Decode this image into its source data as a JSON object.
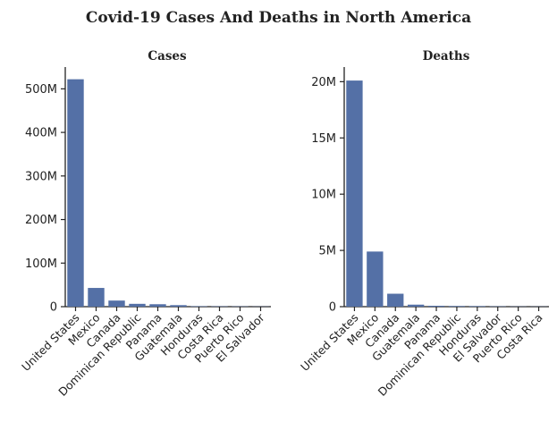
{
  "title": "Covid-19 Cases And Deaths in North America",
  "chart_data": [
    {
      "type": "bar",
      "title": "Cases",
      "xlabel": "",
      "ylabel": "",
      "categories": [
        "United States",
        "Mexico",
        "Canada",
        "Dominican Republic",
        "Panama",
        "Guatemala",
        "Honduras",
        "Costa Rica",
        "Puerto Rico",
        "El Salvador"
      ],
      "values": [
        522000000,
        43000000,
        14000000,
        6500000,
        5600000,
        3500000,
        1000000,
        800000,
        700000,
        400000
      ],
      "ylim": [
        0,
        550000000
      ],
      "yticks": [
        0,
        100000000,
        200000000,
        300000000,
        400000000,
        500000000
      ],
      "ytick_labels": [
        "0",
        "100M",
        "200M",
        "300M",
        "400M",
        "500M"
      ],
      "color": "#5470a6",
      "grid": false
    },
    {
      "type": "bar",
      "title": "Deaths",
      "xlabel": "",
      "ylabel": "",
      "categories": [
        "United States",
        "Mexico",
        "Canada",
        "Guatemala",
        "Panama",
        "Dominican Republic",
        "Honduras",
        "El Salvador",
        "Puerto Rico",
        "Costa Rica"
      ],
      "values": [
        20100000,
        4900000,
        1150000,
        180000,
        80000,
        60000,
        50000,
        30000,
        20000,
        15000
      ],
      "ylim": [
        0,
        21300000
      ],
      "yticks": [
        0,
        5000000,
        10000000,
        15000000,
        20000000
      ],
      "ytick_labels": [
        "0",
        "5M",
        "10M",
        "15M",
        "20M"
      ],
      "color": "#5470a6",
      "grid": false
    }
  ]
}
